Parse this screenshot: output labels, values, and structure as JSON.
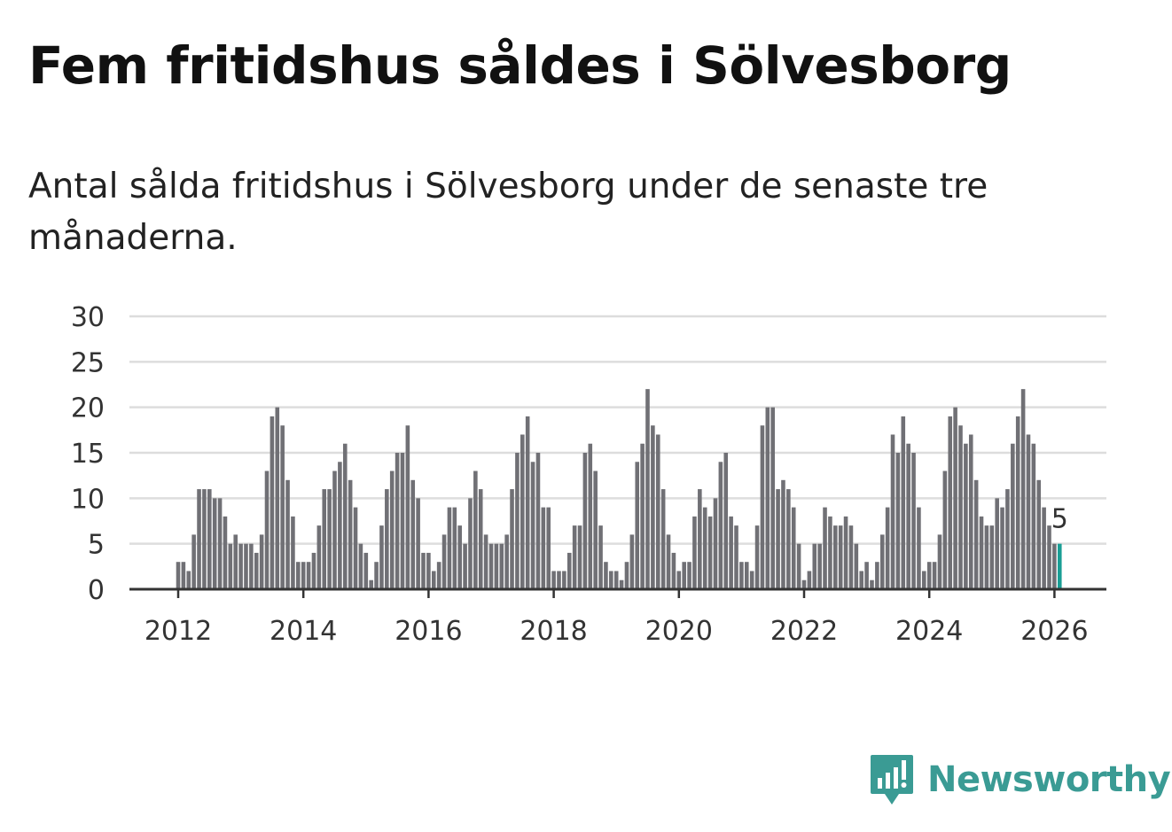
{
  "header": {
    "title": "Fem fritidshus såldes i Sölvesborg",
    "subtitle": "Antal sålda fritidshus i Sölvesborg under de senaste tre månaderna."
  },
  "brand": {
    "name": "Newsworthy"
  },
  "colors": {
    "bar": "#707075",
    "highlight": "#1a9e95",
    "grid": "#dddddd",
    "axis": "#333333",
    "brand": "#3a9b94"
  },
  "chart_data": {
    "type": "bar",
    "title": "Fem fritidshus såldes i Sölvesborg",
    "subtitle": "Antal sålda fritidshus i Sölvesborg under de senaste tre månaderna.",
    "xlabel": "",
    "ylabel": "",
    "ylim": [
      0,
      30
    ],
    "yticks": [
      "0",
      "5",
      "10",
      "15",
      "20",
      "25",
      "30"
    ],
    "xticks": [
      "2012",
      "2014",
      "2016",
      "2018",
      "2020",
      "2022",
      "2024",
      "2026"
    ],
    "start": "2012-01",
    "frequency": "monthly",
    "grid": true,
    "annotation": {
      "label": "5",
      "month": "2026-01"
    },
    "values": [
      3,
      3,
      2,
      6,
      11,
      11,
      11,
      10,
      10,
      8,
      5,
      6,
      5,
      5,
      5,
      4,
      6,
      13,
      19,
      20,
      18,
      12,
      8,
      3,
      3,
      3,
      4,
      7,
      11,
      11,
      13,
      14,
      16,
      12,
      9,
      5,
      4,
      1,
      3,
      7,
      11,
      13,
      15,
      15,
      18,
      12,
      10,
      4,
      4,
      2,
      3,
      6,
      9,
      9,
      7,
      5,
      10,
      13,
      11,
      6,
      5,
      5,
      5,
      6,
      11,
      15,
      17,
      19,
      14,
      15,
      9,
      9,
      2,
      2,
      2,
      4,
      7,
      7,
      15,
      16,
      13,
      7,
      3,
      2,
      2,
      1,
      3,
      6,
      14,
      16,
      22,
      18,
      17,
      11,
      6,
      4,
      2,
      3,
      3,
      8,
      11,
      9,
      8,
      10,
      14,
      15,
      8,
      7,
      3,
      3,
      2,
      7,
      18,
      20,
      20,
      11,
      12,
      11,
      9,
      5,
      1,
      2,
      5,
      5,
      9,
      8,
      7,
      7,
      8,
      7,
      5,
      2,
      3,
      1,
      3,
      6,
      9,
      17,
      15,
      19,
      16,
      15,
      9,
      2,
      3,
      3,
      6,
      13,
      19,
      20,
      18,
      16,
      17,
      12,
      8,
      7,
      7,
      10,
      9,
      11,
      16,
      19,
      22,
      17,
      16,
      12,
      9,
      7,
      5,
      5
    ]
  }
}
